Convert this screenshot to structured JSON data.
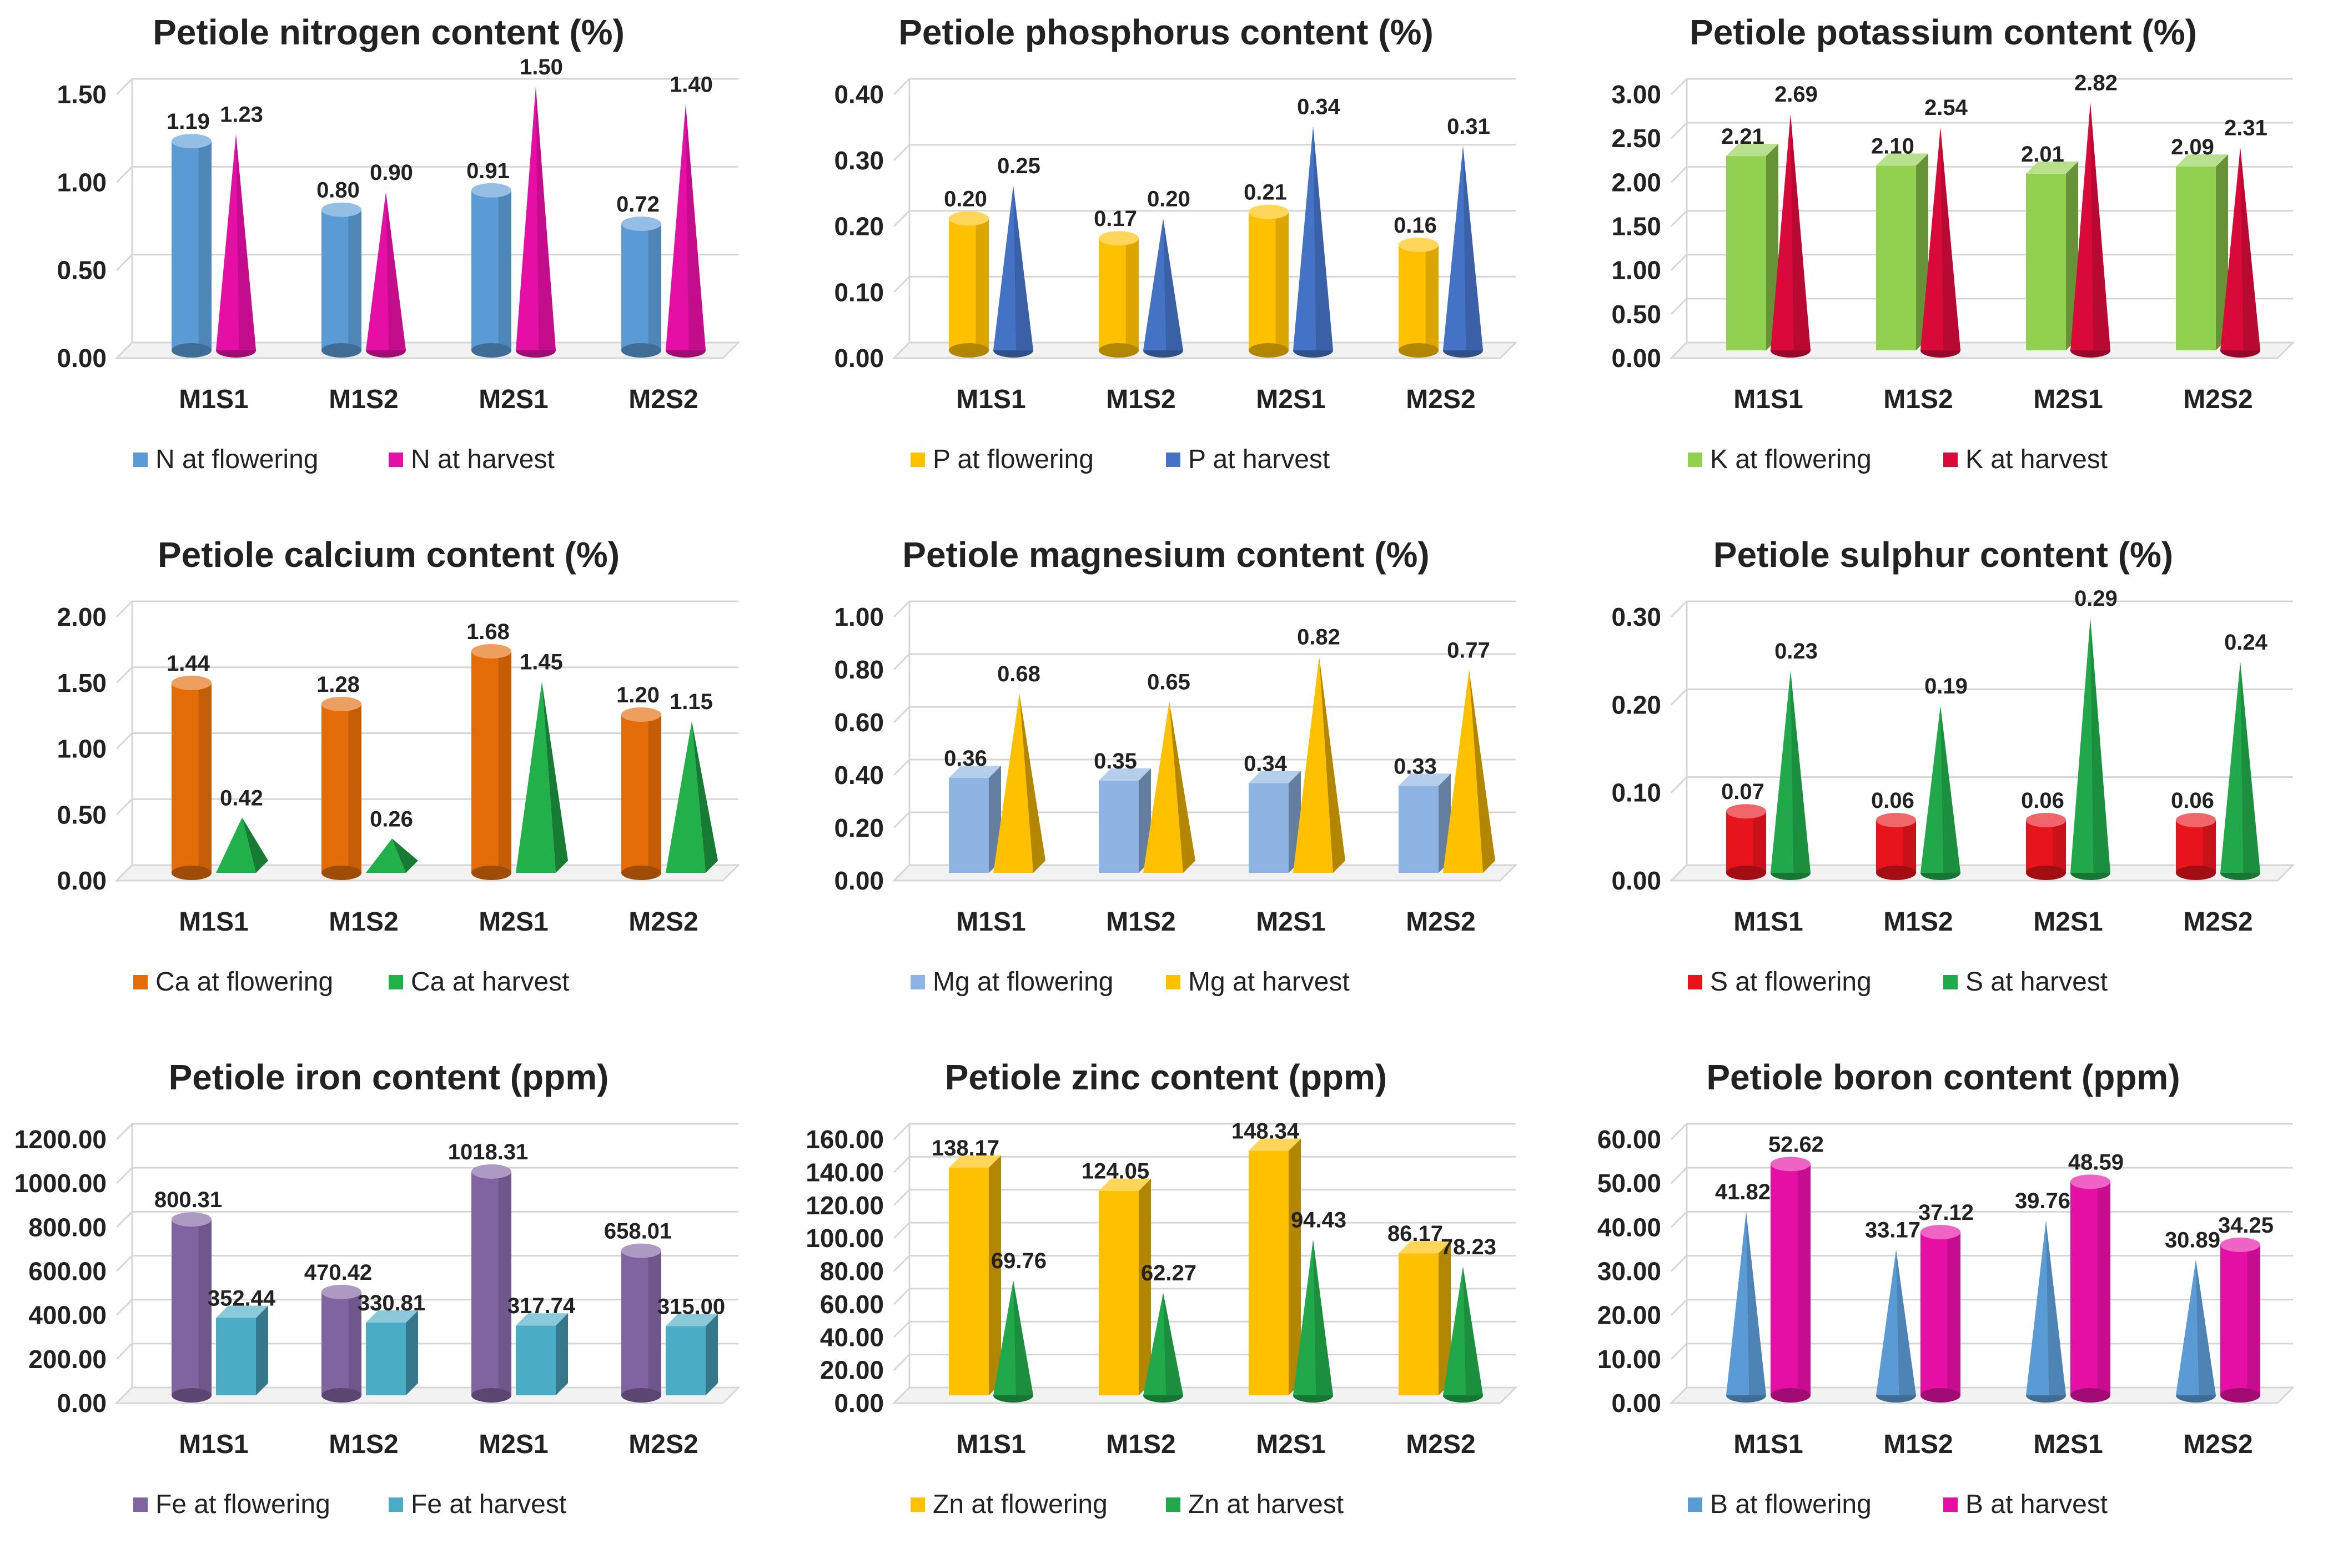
{
  "chart_data": [
    {
      "type": "bar",
      "title": "Petiole nitrogen content (%)",
      "categories": [
        "M1S1",
        "M1S2",
        "M2S1",
        "M2S2"
      ],
      "ylim": [
        0,
        1.5
      ],
      "yticks": [
        "0.00",
        "0.50",
        "1.00",
        "1.50"
      ],
      "grid": true,
      "legend": "bottom",
      "series": [
        {
          "name": "N at flowering",
          "shape": "cylinder",
          "color": "#5b9bd5",
          "values": [
            1.19,
            0.8,
            0.91,
            0.72
          ],
          "labels": [
            "1.19",
            "0.80",
            "0.91",
            "0.72"
          ]
        },
        {
          "name": "N at harvest",
          "shape": "cone",
          "color": "#e60fa6",
          "values": [
            1.23,
            0.9,
            1.5,
            1.4
          ],
          "labels": [
            "1.23",
            "0.90",
            "1.50",
            "1.40"
          ]
        }
      ]
    },
    {
      "type": "bar",
      "title": "Petiole phosphorus content (%)",
      "categories": [
        "M1S1",
        "M1S2",
        "M2S1",
        "M2S2"
      ],
      "ylim": [
        0,
        0.4
      ],
      "yticks": [
        "0.00",
        "0.10",
        "0.20",
        "0.30",
        "0.40"
      ],
      "grid": true,
      "legend": "bottom",
      "series": [
        {
          "name": "P at flowering",
          "shape": "cylinder",
          "color": "#ffc000",
          "values": [
            0.2,
            0.17,
            0.21,
            0.16
          ],
          "labels": [
            "0.20",
            "0.17",
            "0.21",
            "0.16"
          ]
        },
        {
          "name": "P at harvest",
          "shape": "cone",
          "color": "#4472c4",
          "values": [
            0.25,
            0.2,
            0.34,
            0.31
          ],
          "labels": [
            "0.25",
            "0.20",
            "0.34",
            "0.31"
          ]
        }
      ]
    },
    {
      "type": "bar",
      "title": "Petiole potassium content (%)",
      "categories": [
        "M1S1",
        "M1S2",
        "M2S1",
        "M2S2"
      ],
      "ylim": [
        0,
        3.0
      ],
      "yticks": [
        "0.00",
        "0.50",
        "1.00",
        "1.50",
        "2.00",
        "2.50",
        "3.00"
      ],
      "grid": true,
      "legend": "bottom",
      "series": [
        {
          "name": "K at flowering",
          "shape": "box",
          "color": "#92d050",
          "values": [
            2.21,
            2.1,
            2.01,
            2.09
          ],
          "labels": [
            "2.21",
            "2.10",
            "2.01",
            "2.09"
          ]
        },
        {
          "name": "K at harvest",
          "shape": "cone",
          "color": "#d90a3a",
          "values": [
            2.69,
            2.54,
            2.82,
            2.31
          ],
          "labels": [
            "2.69",
            "2.54",
            "2.82",
            "2.31"
          ]
        }
      ]
    },
    {
      "type": "bar",
      "title": "Petiole calcium content (%)",
      "categories": [
        "M1S1",
        "M1S2",
        "M2S1",
        "M2S2"
      ],
      "ylim": [
        0,
        2.0
      ],
      "yticks": [
        "0.00",
        "0.50",
        "1.00",
        "1.50",
        "2.00"
      ],
      "grid": true,
      "legend": "bottom",
      "series": [
        {
          "name": "Ca at flowering",
          "shape": "cylinder",
          "color": "#e36c09",
          "values": [
            1.44,
            1.28,
            1.68,
            1.2
          ],
          "labels": [
            "1.44",
            "1.28",
            "1.68",
            "1.20"
          ]
        },
        {
          "name": "Ca at harvest",
          "shape": "pyramid",
          "color": "#21b04a",
          "values": [
            0.42,
            0.26,
            1.45,
            1.15
          ],
          "labels": [
            "0.42",
            "0.26",
            "1.45",
            "1.15"
          ]
        }
      ]
    },
    {
      "type": "bar",
      "title": "Petiole magnesium content (%)",
      "categories": [
        "M1S1",
        "M1S2",
        "M2S1",
        "M2S2"
      ],
      "ylim": [
        0,
        1.0
      ],
      "yticks": [
        "0.00",
        "0.20",
        "0.40",
        "0.60",
        "0.80",
        "1.00"
      ],
      "grid": true,
      "legend": "bottom",
      "series": [
        {
          "name": "Mg at flowering",
          "shape": "box",
          "color": "#8db4e2",
          "values": [
            0.36,
            0.35,
            0.34,
            0.33
          ],
          "labels": [
            "0.36",
            "0.35",
            "0.34",
            "0.33"
          ]
        },
        {
          "name": "Mg at harvest",
          "shape": "pyramid",
          "color": "#ffc000",
          "values": [
            0.68,
            0.65,
            0.82,
            0.77
          ],
          "labels": [
            "0.68",
            "0.65",
            "0.82",
            "0.77"
          ]
        }
      ]
    },
    {
      "type": "bar",
      "title": "Petiole sulphur content (%)",
      "categories": [
        "M1S1",
        "M1S2",
        "M2S1",
        "M2S2"
      ],
      "ylim": [
        0,
        0.3
      ],
      "yticks": [
        "0.00",
        "0.10",
        "0.20",
        "0.30"
      ],
      "grid": true,
      "legend": "bottom",
      "series": [
        {
          "name": "S at flowering",
          "shape": "cylinder",
          "color": "#e8141c",
          "values": [
            0.07,
            0.06,
            0.06,
            0.06
          ],
          "labels": [
            "0.07",
            "0.06",
            "0.06",
            "0.06"
          ]
        },
        {
          "name": "S at harvest",
          "shape": "cone",
          "color": "#21a84a",
          "values": [
            0.23,
            0.19,
            0.29,
            0.24
          ],
          "labels": [
            "0.23",
            "0.19",
            "0.29",
            "0.24"
          ]
        }
      ]
    },
    {
      "type": "bar",
      "title": "Petiole iron content (ppm)",
      "categories": [
        "M1S1",
        "M1S2",
        "M2S1",
        "M2S2"
      ],
      "ylim": [
        0,
        1200
      ],
      "yticks": [
        "0.00",
        "200.00",
        "400.00",
        "600.00",
        "800.00",
        "1000.00",
        "1200.00"
      ],
      "grid": true,
      "legend": "bottom",
      "series": [
        {
          "name": "Fe at flowering",
          "shape": "cylinder",
          "color": "#8064a2",
          "values": [
            800.31,
            470.42,
            1018.31,
            658.01
          ],
          "labels": [
            "800.31",
            "470.42",
            "1018.31",
            "658.01"
          ]
        },
        {
          "name": "Fe at harvest",
          "shape": "box",
          "color": "#4bacc6",
          "values": [
            352.44,
            330.81,
            317.74,
            315.0
          ],
          "labels": [
            "352.44",
            "330.81",
            "317.74",
            "315.00"
          ]
        }
      ]
    },
    {
      "type": "bar",
      "title": "Petiole zinc content (ppm)",
      "categories": [
        "M1S1",
        "M1S2",
        "M2S1",
        "M2S2"
      ],
      "ylim": [
        0,
        160
      ],
      "yticks": [
        "0.00",
        "20.00",
        "40.00",
        "60.00",
        "80.00",
        "100.00",
        "120.00",
        "140.00",
        "160.00"
      ],
      "grid": true,
      "legend": "bottom",
      "series": [
        {
          "name": "Zn at flowering",
          "shape": "box",
          "color": "#ffc000",
          "values": [
            138.17,
            124.05,
            148.34,
            86.17
          ],
          "labels": [
            "138.17",
            "124.05",
            "148.34",
            "86.17"
          ]
        },
        {
          "name": "Zn at harvest",
          "shape": "cone",
          "color": "#21a84a",
          "values": [
            69.76,
            62.27,
            94.43,
            78.23
          ],
          "labels": [
            "69.76",
            "62.27",
            "94.43",
            "78.23"
          ]
        }
      ]
    },
    {
      "type": "bar",
      "title": "Petiole boron content (ppm)",
      "categories": [
        "M1S1",
        "M1S2",
        "M2S1",
        "M2S2"
      ],
      "ylim": [
        0,
        60
      ],
      "yticks": [
        "0.00",
        "10.00",
        "20.00",
        "30.00",
        "40.00",
        "50.00",
        "60.00"
      ],
      "grid": true,
      "legend": "bottom",
      "series": [
        {
          "name": "B at flowering",
          "shape": "cone",
          "color": "#5b9bd5",
          "values": [
            41.82,
            33.17,
            39.76,
            30.89
          ],
          "labels": [
            "41.82",
            "33.17",
            "39.76",
            "30.89"
          ]
        },
        {
          "name": "B at harvest",
          "shape": "cylinder",
          "color": "#e60fa6",
          "values": [
            52.62,
            37.12,
            48.59,
            34.25
          ],
          "labels": [
            "52.62",
            "37.12",
            "48.59",
            "34.25"
          ]
        }
      ]
    }
  ]
}
